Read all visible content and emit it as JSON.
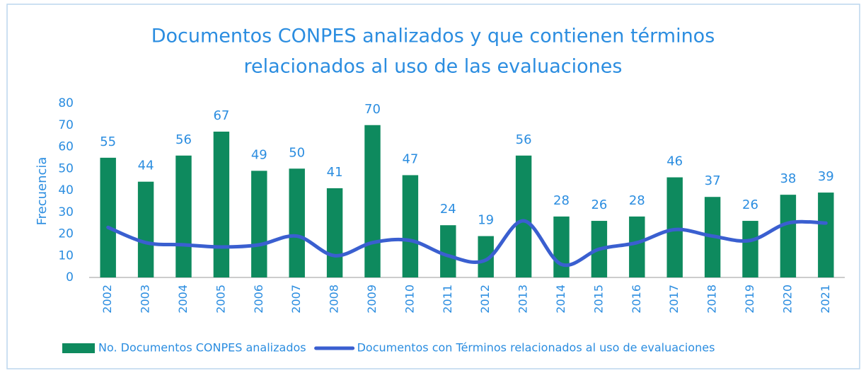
{
  "chart_data": {
    "type": "bar_line",
    "title": [
      "Documentos CONPES analizados y que contienen términos",
      "relacionados al uso de las evaluaciones"
    ],
    "y_label": "Frecuencia",
    "categories": [
      "2002",
      "2003",
      "2004",
      "2005",
      "2006",
      "2007",
      "2008",
      "2009",
      "2010",
      "2011",
      "2012",
      "2013",
      "2014",
      "2015",
      "2016",
      "2017",
      "2018",
      "2019",
      "2020",
      "2021"
    ],
    "series": [
      {
        "name": "No. Documentos CONPES analizados",
        "type": "bar",
        "color": "#0e8a5e",
        "values": [
          55,
          44,
          56,
          67,
          49,
          50,
          41,
          70,
          47,
          24,
          19,
          56,
          28,
          26,
          28,
          46,
          37,
          26,
          38,
          39
        ]
      },
      {
        "name": "Documentos con Términos relacionados al uso de evaluaciones",
        "type": "line",
        "color": "#3a5fd0",
        "values": [
          23,
          16,
          15,
          14,
          15,
          19,
          10,
          16,
          17,
          10,
          8,
          26,
          6,
          13,
          16,
          22,
          19,
          17,
          25,
          25
        ]
      }
    ],
    "ylim": [
      0,
      80
    ],
    "yticks": [
      0,
      10,
      20,
      30,
      40,
      50,
      60,
      70,
      80
    ],
    "grid": false,
    "legend": "bottom"
  }
}
